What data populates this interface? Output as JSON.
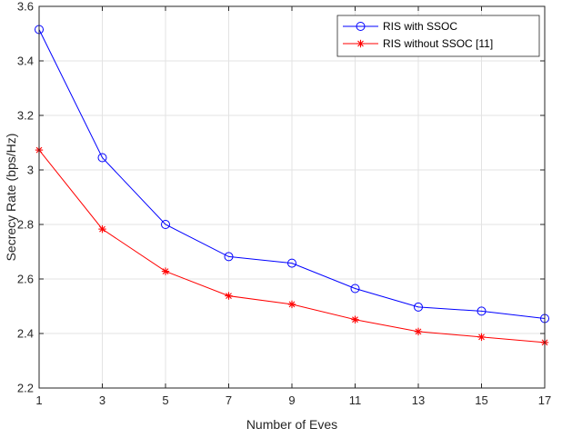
{
  "chart_data": {
    "type": "line",
    "xlabel": "Number of Eves",
    "ylabel": "Secrecy Rate (bps/Hz)",
    "xlim": [
      1,
      17
    ],
    "ylim": [
      2.2,
      3.6
    ],
    "xticks": [
      1,
      3,
      5,
      7,
      9,
      11,
      13,
      15,
      17
    ],
    "yticks": [
      2.2,
      2.4,
      2.6,
      2.8,
      3.0,
      3.2,
      3.4,
      3.6
    ],
    "ytick_labels": [
      "2.2",
      "2.4",
      "2.6",
      "2.8",
      "3",
      "3.2",
      "3.4",
      "3.6"
    ],
    "grid": true,
    "legend_position": "top-right",
    "x": [
      1,
      3,
      5,
      7,
      9,
      11,
      13,
      15,
      17
    ],
    "series": [
      {
        "name": "RIS with SSOC",
        "color": "#0000ff",
        "marker": "circle",
        "values": [
          3.515,
          3.045,
          2.8,
          2.682,
          2.658,
          2.565,
          2.497,
          2.482,
          2.455
        ]
      },
      {
        "name": "RIS without SSOC [11]",
        "color": "#ff0000",
        "marker": "asterisk",
        "values": [
          3.073,
          2.783,
          2.628,
          2.538,
          2.507,
          2.451,
          2.407,
          2.387,
          2.367
        ]
      }
    ]
  }
}
